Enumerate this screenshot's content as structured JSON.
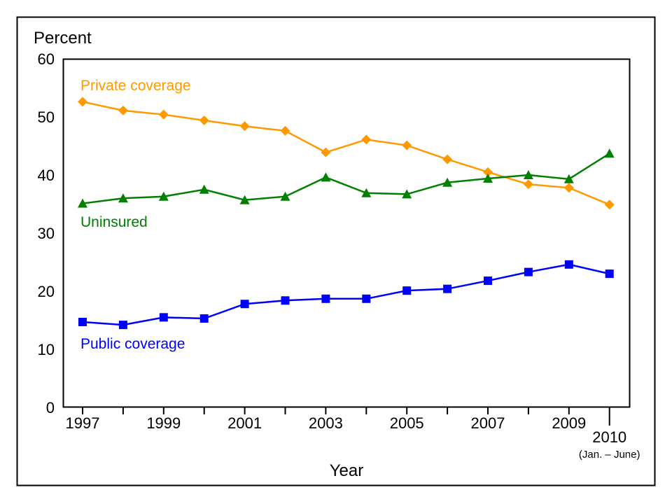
{
  "chart_data": {
    "type": "line",
    "title": "",
    "ylabel": "Percent",
    "xlabel": "Year",
    "ylim": [
      0,
      60
    ],
    "yticks": [
      0,
      10,
      20,
      30,
      40,
      50,
      60
    ],
    "x": [
      1997,
      1998,
      1999,
      2000,
      2001,
      2002,
      2003,
      2004,
      2005,
      2006,
      2007,
      2008,
      2009,
      2010
    ],
    "xtick_labels": [
      {
        "x": 1997,
        "label": "1997"
      },
      {
        "x": 1999,
        "label": "1999"
      },
      {
        "x": 2001,
        "label": "2001"
      },
      {
        "x": 2003,
        "label": "2003"
      },
      {
        "x": 2005,
        "label": "2005"
      },
      {
        "x": 2007,
        "label": "2007"
      },
      {
        "x": 2009,
        "label": "2009"
      },
      {
        "x": 2010,
        "label": "2010",
        "sublabel": "(Jan. – June)"
      }
    ],
    "grid": false,
    "series": [
      {
        "name": "Private coverage",
        "color": "#FF9900",
        "marker": "diamond",
        "values": [
          52.6,
          51.1,
          50.4,
          49.4,
          48.4,
          47.6,
          43.9,
          46.1,
          45.1,
          42.7,
          40.5,
          38.4,
          37.8,
          34.9
        ]
      },
      {
        "name": "Uninsured",
        "color": "#008000",
        "marker": "triangle",
        "values": [
          35.1,
          36.0,
          36.3,
          37.5,
          35.7,
          36.3,
          39.6,
          36.9,
          36.7,
          38.7,
          39.4,
          40.0,
          39.3,
          43.7
        ]
      },
      {
        "name": "Public coverage",
        "color": "#0000FF",
        "marker": "square",
        "values": [
          14.7,
          14.2,
          15.5,
          15.3,
          17.8,
          18.4,
          18.7,
          18.7,
          20.1,
          20.4,
          21.8,
          23.3,
          24.6,
          23.0
        ]
      }
    ]
  }
}
